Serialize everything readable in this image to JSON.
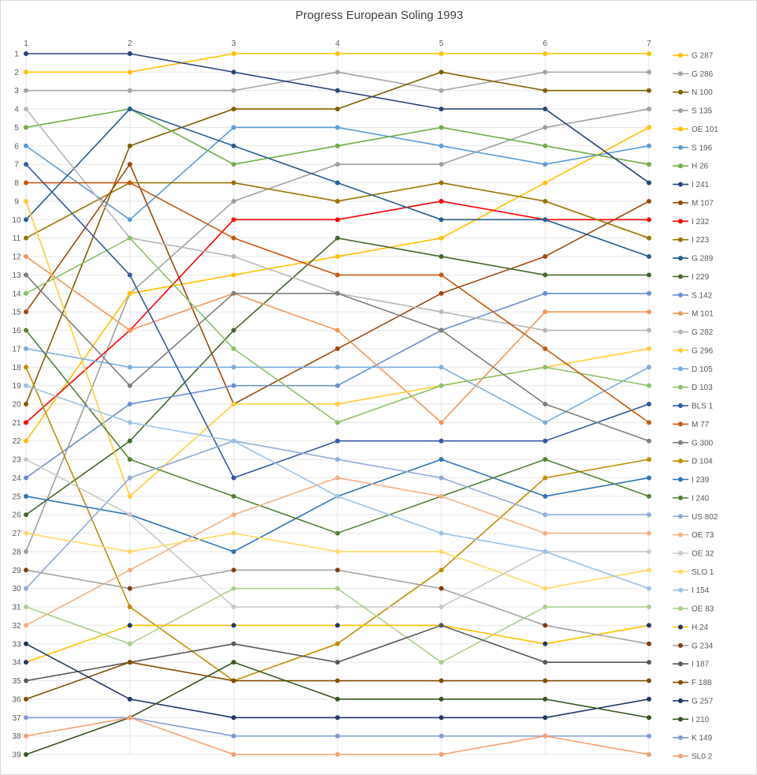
{
  "chart_data": {
    "type": "line",
    "title": "Progress European Soling 1993",
    "x": [
      1,
      2,
      3,
      4,
      5,
      6,
      7
    ],
    "x_axis_position": "top",
    "y_reversed": true,
    "ylim": [
      1,
      39
    ],
    "y_ticks": [
      1,
      2,
      3,
      4,
      5,
      6,
      7,
      8,
      9,
      10,
      11,
      12,
      13,
      14,
      15,
      16,
      17,
      18,
      19,
      20,
      21,
      22,
      23,
      24,
      25,
      26,
      27,
      28,
      29,
      30,
      31,
      32,
      33,
      34,
      35,
      36,
      37,
      38,
      39
    ],
    "grid": true,
    "legend": "right",
    "series": [
      {
        "name": "G 287",
        "color": "#FFC000",
        "values": [
          2,
          2,
          1,
          1,
          1,
          1,
          1
        ]
      },
      {
        "name": "G 286",
        "color": "#A5A5A5",
        "values": [
          3,
          3,
          3,
          2,
          3,
          2,
          2
        ]
      },
      {
        "name": "N 100",
        "color": "#7F6000",
        "values": [
          20,
          6,
          4,
          4,
          2,
          3,
          3
        ]
      },
      {
        "name": "S 135",
        "color": "#A0A0A0",
        "values": [
          28,
          14,
          9,
          7,
          7,
          5,
          4
        ]
      },
      {
        "name": "OE 101",
        "color": "#FFC000",
        "values": [
          22,
          14,
          13,
          12,
          11,
          8,
          5
        ]
      },
      {
        "name": "S 196",
        "color": "#5B9BD5",
        "values": [
          6,
          10,
          5,
          5,
          6,
          7,
          6
        ]
      },
      {
        "name": "H 26",
        "color": "#70AD47",
        "values": [
          5,
          4,
          7,
          6,
          5,
          6,
          7
        ]
      },
      {
        "name": "I 241",
        "color": "#264478",
        "values": [
          1,
          1,
          2,
          3,
          4,
          4,
          8
        ]
      },
      {
        "name": "M 107",
        "color": "#9E480E",
        "values": [
          15,
          7,
          20,
          17,
          14,
          12,
          9
        ]
      },
      {
        "name": "I 232",
        "color": "#FF0000",
        "values": [
          21,
          16,
          10,
          10,
          9,
          10,
          10
        ]
      },
      {
        "name": "I 223",
        "color": "#997300",
        "values": [
          11,
          8,
          8,
          9,
          8,
          9,
          11
        ]
      },
      {
        "name": "G 289",
        "color": "#255E91",
        "values": [
          10,
          4,
          6,
          8,
          10,
          10,
          12
        ]
      },
      {
        "name": "I 229",
        "color": "#43682B",
        "values": [
          26,
          22,
          16,
          11,
          12,
          13,
          13
        ]
      },
      {
        "name": "S 142",
        "color": "#698ED0",
        "values": [
          24,
          20,
          19,
          19,
          16,
          14,
          14
        ]
      },
      {
        "name": "M 101",
        "color": "#F1975A",
        "values": [
          12,
          16,
          14,
          16,
          21,
          15,
          15
        ]
      },
      {
        "name": "G 282",
        "color": "#B7B7B7",
        "values": [
          4,
          11,
          12,
          14,
          15,
          16,
          16
        ]
      },
      {
        "name": "G 296",
        "color": "#FFCD33",
        "values": [
          9,
          25,
          20,
          20,
          19,
          18,
          17
        ]
      },
      {
        "name": "D 105",
        "color": "#7CAFDD",
        "values": [
          17,
          18,
          18,
          18,
          18,
          21,
          18
        ]
      },
      {
        "name": "D 103",
        "color": "#8CC168",
        "values": [
          14,
          11,
          17,
          21,
          19,
          18,
          19
        ]
      },
      {
        "name": "BLS 1",
        "color": "#335AA1",
        "values": [
          7,
          13,
          24,
          22,
          22,
          22,
          20
        ]
      },
      {
        "name": "M 77",
        "color": "#C55A11",
        "values": [
          8,
          8,
          11,
          13,
          13,
          17,
          21
        ]
      },
      {
        "name": "G 300",
        "color": "#7F7F7F",
        "values": [
          13,
          19,
          14,
          14,
          16,
          20,
          22
        ]
      },
      {
        "name": "D 104",
        "color": "#BF9000",
        "values": [
          18,
          31,
          35,
          33,
          29,
          24,
          23
        ]
      },
      {
        "name": "I 239",
        "color": "#2E75B6",
        "values": [
          25,
          26,
          28,
          25,
          23,
          25,
          24
        ]
      },
      {
        "name": "I 240",
        "color": "#548235",
        "values": [
          16,
          23,
          25,
          27,
          25,
          23,
          25
        ]
      },
      {
        "name": "US 802",
        "color": "#8FAADC",
        "values": [
          30,
          24,
          22,
          23,
          24,
          26,
          26
        ]
      },
      {
        "name": "OE 73",
        "color": "#F4B183",
        "values": [
          32,
          29,
          26,
          24,
          25,
          27,
          27
        ]
      },
      {
        "name": "OE 32",
        "color": "#C9C9C9",
        "values": [
          23,
          26,
          31,
          31,
          31,
          28,
          28
        ]
      },
      {
        "name": "SLO 1",
        "color": "#FFD966",
        "values": [
          27,
          28,
          27,
          28,
          28,
          30,
          29
        ]
      },
      {
        "name": "I 154",
        "color": "#9DC3E6",
        "values": [
          19,
          21,
          22,
          25,
          27,
          28,
          30
        ]
      },
      {
        "name": "OE 83",
        "color": "#A9D18E",
        "values": [
          31,
          33,
          30,
          30,
          34,
          31,
          31
        ]
      },
      {
        "name": "H 24",
        "color": "#203864",
        "line_color": "#FFC000",
        "values": [
          34,
          32,
          32,
          32,
          32,
          33,
          32
        ]
      },
      {
        "name": "G 234",
        "color": "#843C0C",
        "line_color": "#A5A5A5",
        "values": [
          29,
          30,
          29,
          29,
          30,
          32,
          33
        ]
      },
      {
        "name": "I 187",
        "color": "#595959",
        "values": [
          35,
          34,
          33,
          34,
          32,
          34,
          34
        ]
      },
      {
        "name": "F 188",
        "color": "#7F4F00",
        "values": [
          36,
          34,
          35,
          35,
          35,
          35,
          35
        ]
      },
      {
        "name": "G 257",
        "color": "#1F3864",
        "values": [
          33,
          36,
          37,
          37,
          37,
          37,
          36
        ]
      },
      {
        "name": "I 210",
        "color": "#375623",
        "values": [
          39,
          37,
          34,
          36,
          36,
          36,
          37
        ]
      },
      {
        "name": "K 149",
        "color": "#7F9BD5",
        "values": [
          37,
          37,
          38,
          38,
          38,
          38,
          38
        ]
      },
      {
        "name": "SL0 2",
        "color": "#F4A070",
        "values": [
          38,
          37,
          39,
          39,
          39,
          38,
          39
        ]
      }
    ]
  }
}
